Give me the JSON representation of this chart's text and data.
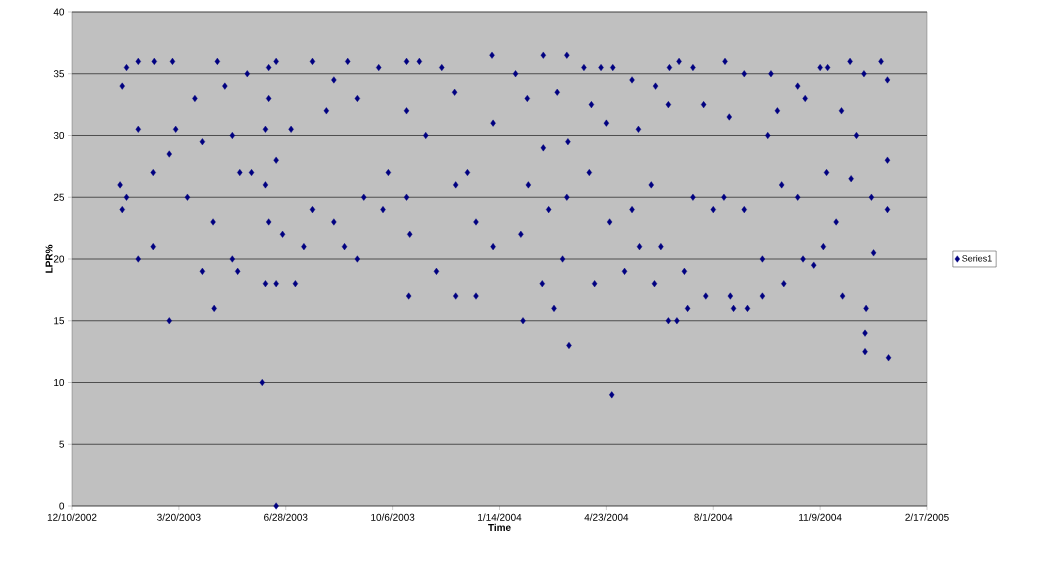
{
  "chart_data": {
    "type": "scatter",
    "xlabel": "Time",
    "ylabel": "LPR%",
    "xlim": [
      "2002-12-10",
      "2005-02-17"
    ],
    "xticks": [
      {
        "value": "2002-12-10",
        "label": "12/10/2002"
      },
      {
        "value": "2003-03-20",
        "label": "3/20/2003"
      },
      {
        "value": "2003-06-28",
        "label": "6/28/2003"
      },
      {
        "value": "2003-10-06",
        "label": "10/6/2003"
      },
      {
        "value": "2004-01-14",
        "label": "1/14/2004"
      },
      {
        "value": "2004-04-23",
        "label": "4/23/2004"
      },
      {
        "value": "2004-08-01",
        "label": "8/1/2004"
      },
      {
        "value": "2004-11-09",
        "label": "11/9/2004"
      },
      {
        "value": "2005-02-17",
        "label": "2/17/2005"
      }
    ],
    "ylim": [
      0,
      40
    ],
    "yticks": [
      0,
      5,
      10,
      15,
      20,
      25,
      30,
      35,
      40
    ],
    "grid": "y",
    "legend": "right",
    "marker": "diamond",
    "series": [
      {
        "name": "Series1",
        "color": "#000080",
        "x": [
          "2003-01-26",
          "2003-01-30",
          "2003-02-10",
          "2003-02-25",
          "2003-02-10",
          "2003-01-24",
          "2003-01-30",
          "2003-01-26",
          "2003-02-10",
          "2003-02-24",
          "2003-02-24",
          "2003-03-11",
          "2003-03-11",
          "2003-03-14",
          "2003-03-17",
          "2003-03-28",
          "2003-04-04",
          "2003-04-11",
          "2003-04-25",
          "2003-04-22",
          "2003-04-11",
          "2003-04-21",
          "2003-05-02",
          "2003-05-09",
          "2003-05-09",
          "2003-05-14",
          "2003-05-16",
          "2003-05-27",
          "2003-05-23",
          "2003-06-06",
          "2003-06-09",
          "2003-06-12",
          "2003-06-19",
          "2003-06-12",
          "2003-06-19",
          "2003-06-09",
          "2003-06-12",
          "2003-06-09",
          "2003-06-19",
          "2003-06-19",
          "2003-06-25",
          "2003-07-03",
          "2003-07-07",
          "2003-07-15",
          "2003-07-23",
          "2003-07-23",
          "2003-08-05",
          "2003-08-12",
          "2003-08-12",
          "2003-08-25",
          "2003-08-22",
          "2003-09-03",
          "2003-09-03",
          "2003-09-09",
          "2003-09-23",
          "2003-10-02",
          "2003-09-27",
          "2003-10-19",
          "2003-10-31",
          "2003-10-19",
          "2003-11-06",
          "2003-10-19",
          "2003-10-22",
          "2003-10-21",
          "2003-11-16",
          "2003-11-21",
          "2003-12-03",
          "2003-12-04",
          "2003-12-04",
          "2003-12-15",
          "2003-12-23",
          "2003-12-23",
          "2004-01-07",
          "2004-01-08",
          "2004-01-08",
          "2004-01-29",
          "2004-02-03",
          "2004-02-05",
          "2004-02-10",
          "2004-02-09",
          "2004-02-24",
          "2004-02-24",
          "2004-02-23",
          "2004-03-05",
          "2004-03-08",
          "2004-02-29",
          "2004-03-17",
          "2004-03-19",
          "2004-03-13",
          "2004-03-18",
          "2004-03-17",
          "2004-04-02",
          "2004-04-09",
          "2004-04-12",
          "2004-04-07",
          "2004-04-18",
          "2004-04-29",
          "2004-04-23",
          "2004-04-28",
          "2004-04-26",
          "2004-05-10",
          "2004-05-17",
          "2004-05-23",
          "2004-05-24",
          "2004-05-17",
          "2004-06-08",
          "2004-06-07",
          "2004-06-04",
          "2004-06-20",
          "2004-06-28",
          "2004-06-21",
          "2004-06-30",
          "2004-06-13",
          "2004-06-20",
          "2004-07-05",
          "2004-07-13",
          "2004-07-13",
          "2004-07-08",
          "2004-07-25",
          "2004-07-23",
          "2004-08-01",
          "2004-08-12",
          "2004-08-16",
          "2004-08-17",
          "2004-08-20",
          "2004-08-11",
          "2004-08-30",
          "2004-09-02",
          "2004-08-30",
          "2004-09-16",
          "2004-09-16",
          "2004-09-21",
          "2004-09-24",
          "2004-09-30",
          "2004-10-04",
          "2004-10-06",
          "2004-10-19",
          "2004-10-26",
          "2004-10-24",
          "2004-10-19",
          "2004-11-03",
          "2004-11-09",
          "2004-11-16",
          "2004-11-15",
          "2004-11-12",
          "2004-11-30",
          "2004-12-07",
          "2004-12-08",
          "2004-12-13",
          "2004-12-20",
          "2004-12-22",
          "2004-12-21",
          "2004-12-21",
          "2004-12-27",
          "2004-12-29",
          "2005-01-05",
          "2005-01-11",
          "2005-01-11",
          "2005-01-11",
          "2005-01-12",
          "2004-11-24",
          "2004-11-29"
        ],
        "values": [
          34,
          35.5,
          36,
          36,
          30.5,
          26,
          25,
          24,
          20,
          21,
          27,
          28.5,
          15,
          36,
          30.5,
          25,
          33,
          29.5,
          36,
          16,
          19,
          23,
          34,
          30,
          20,
          19,
          27,
          27,
          35,
          10,
          30.5,
          35.5,
          36,
          33,
          28,
          26,
          23,
          18,
          18,
          0,
          22,
          30.5,
          18,
          21,
          36,
          24,
          32,
          34.5,
          23,
          36,
          21,
          33,
          20,
          25,
          35.5,
          27,
          24,
          36,
          36,
          32,
          30,
          25,
          22,
          17,
          19,
          35.5,
          33.5,
          26,
          17,
          27,
          17,
          23,
          36.5,
          31,
          21,
          35,
          22,
          15,
          26,
          33,
          36.5,
          29,
          18,
          16,
          33.5,
          24,
          36.5,
          13,
          20,
          29.5,
          25,
          35.5,
          32.5,
          18,
          27,
          35.5,
          35.5,
          31,
          9,
          23,
          19,
          34.5,
          30.5,
          21,
          24,
          34,
          18,
          26,
          15,
          15,
          35.5,
          36,
          21,
          32.5,
          19,
          35.5,
          25,
          16,
          17,
          32.5,
          24,
          36,
          31.5,
          17,
          16,
          25,
          35,
          16,
          24,
          20,
          17,
          30,
          35,
          32,
          26,
          18,
          34,
          33,
          20,
          25,
          19.5,
          35.5,
          35.5,
          27,
          21,
          17,
          36,
          26.5,
          30,
          35,
          16,
          14,
          12.5,
          25,
          20.5,
          36,
          34.5,
          28,
          24,
          12,
          23,
          32
        ]
      }
    ]
  }
}
